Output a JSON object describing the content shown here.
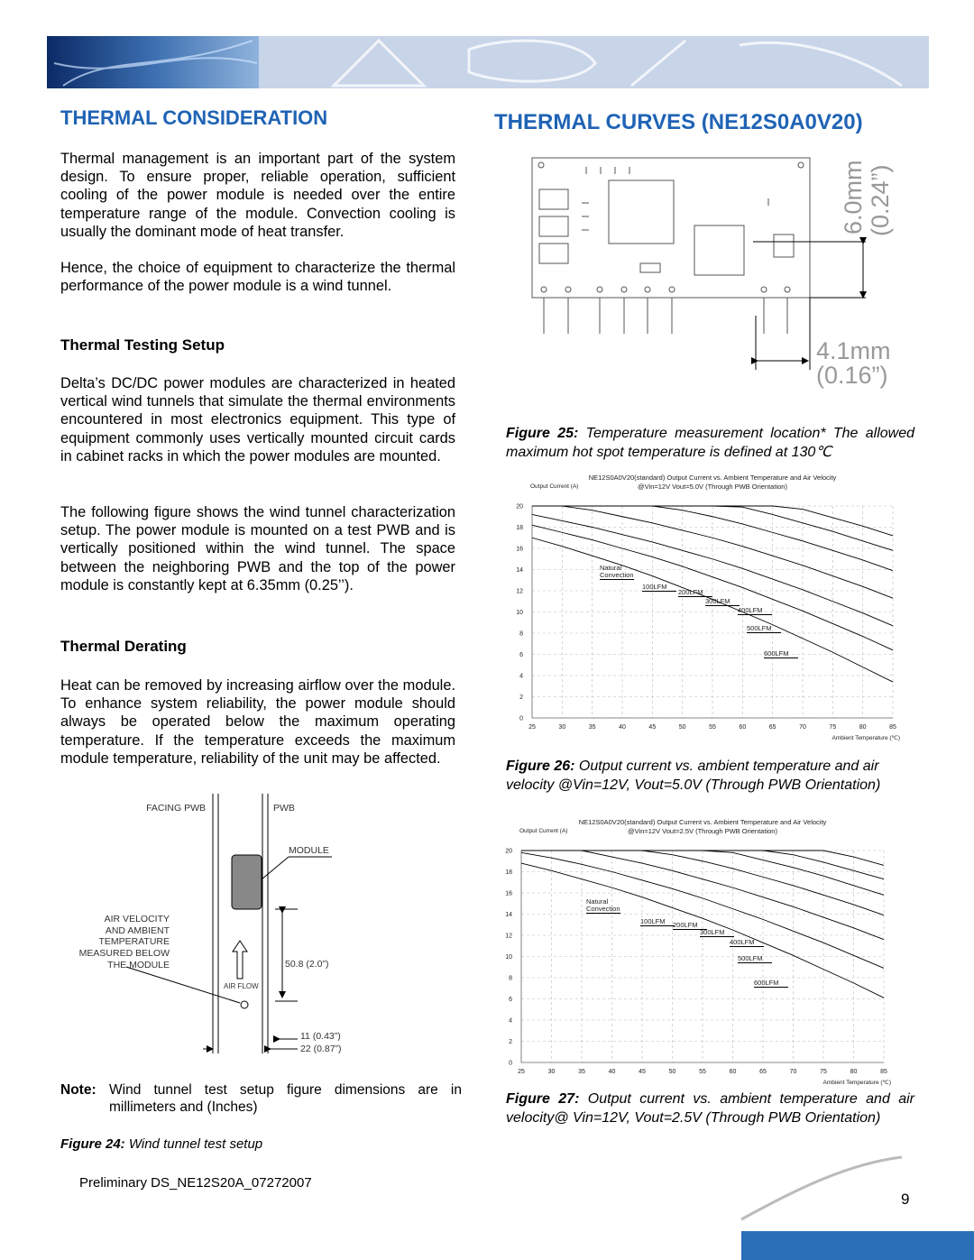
{
  "left": {
    "title": "THERMAL CONSIDERATION",
    "paragraphs": [
      "Thermal management is an important part of the system design. To ensure proper, reliable operation, sufficient cooling of the power module is needed over the entire temperature range of the module. Convection cooling is usually the dominant mode of heat transfer.",
      "Hence, the choice of equipment to characterize the thermal performance of the power module is a wind tunnel."
    ],
    "testing": {
      "heading": "Thermal Testing Setup",
      "paragraphs": [
        "Delta’s DC/DC power modules are characterized in heated vertical wind tunnels that simulate the thermal environments encountered in most electronics equipment. This type of equipment commonly uses vertically mounted circuit cards in cabinet racks in which the power modules are mounted.",
        "The following figure shows the wind tunnel characterization setup. The power module is mounted on a test PWB and is vertically positioned within the wind tunnel. The space between the neighboring PWB and the top of the power module is constantly kept at 6.35mm (0.25’’)."
      ]
    },
    "derating": {
      "heading": "Thermal Derating",
      "paragraphs": [
        "Heat can be removed by increasing airflow over the module. To enhance system reliability, the power module should always be operated below the maximum operating temperature. If the temperature exceeds the maximum module temperature, reliability of the unit may be affected."
      ]
    },
    "figure24": {
      "labels": {
        "facing_pwb": "FACING PWB",
        "pwb": "PWB",
        "module": "MODULE",
        "measured": [
          "AIR VELOCITY",
          "AND AMBIENT",
          "TEMPERATURE",
          "MEASURED BELOW",
          "THE MODULE"
        ],
        "height": "50.8 (2.0”)",
        "airflow": "AIR FLOW",
        "gap": "11 (0.43”)",
        "spacing": "22 (0.87”)"
      },
      "caption": {
        "label": "Figure 24:",
        "text": "Wind tunnel test setup"
      }
    },
    "note": {
      "label": "Note:",
      "text": "Wind tunnel test setup figure dimensions are in millimeters and (Inches)"
    }
  },
  "right": {
    "title": "THERMAL CURVES (NE12S0A0V20)",
    "figure25": {
      "dims": [
        "6.0mm",
        "(0.24”)",
        "4.1mm",
        "(0.16”)"
      ],
      "caption": {
        "label": "Figure 25:",
        "text": "Temperature measurement location* The allowed maximum hot spot temperature is defined at 130℃"
      }
    },
    "figure26_caption": {
      "label": "Figure 26:",
      "text": "Output current vs. ambient temperature and air velocity @Vin=12V, Vout=5.0V (Through PWB Orientation)"
    },
    "figure27_caption": {
      "label": "Figure 27:",
      "text": "Output current vs. ambient temperature and air velocity@ Vin=12V, Vout=2.5V (Through PWB Orientation)"
    }
  },
  "footer": {
    "doc_id": "Preliminary DS_NE12S20A_07272007",
    "page": "9"
  },
  "chart_data": [
    {
      "type": "line",
      "title": "NE12S0A0V20(standard) Output Current vs. Ambient Temperature and Air Velocity",
      "subtitle": "@Vin=12V Vout=5.0V (Through PWB Orientation)",
      "y_label": "Output Current (A)",
      "x_label": "Ambient Temperature (℃)",
      "x": [
        25,
        30,
        35,
        40,
        45,
        50,
        55,
        60,
        65,
        70,
        75,
        80,
        85
      ],
      "xlim": [
        25,
        85
      ],
      "xticks": [
        25,
        30,
        35,
        40,
        45,
        50,
        55,
        60,
        65,
        70,
        75,
        80,
        85
      ],
      "ylim": [
        0,
        20
      ],
      "yticks": [
        0,
        2,
        4,
        6,
        8,
        10,
        12,
        14,
        16,
        18,
        20
      ],
      "grid": true,
      "series": [
        {
          "name": "Natural Convection",
          "color": "#000000",
          "values": [
            17.0,
            16.2,
            15.3,
            14.4,
            13.4,
            12.3,
            11.2,
            10.0,
            8.8,
            7.5,
            6.2,
            4.8,
            3.4
          ]
        },
        {
          "name": "100LFM",
          "color": "#000000",
          "values": [
            18.2,
            17.5,
            16.8,
            16.0,
            15.2,
            14.3,
            13.3,
            12.3,
            11.2,
            10.1,
            8.9,
            7.7,
            6.4
          ]
        },
        {
          "name": "200LFM",
          "color": "#000000",
          "values": [
            19.2,
            18.6,
            18.0,
            17.3,
            16.6,
            15.8,
            15.0,
            14.1,
            13.1,
            12.1,
            11.0,
            9.9,
            8.7
          ]
        },
        {
          "name": "300LFM",
          "color": "#000000",
          "values": [
            20,
            20,
            19.6,
            19.0,
            18.4,
            17.7,
            17.0,
            16.2,
            15.3,
            14.4,
            13.4,
            12.4,
            11.3
          ]
        },
        {
          "name": "400LFM",
          "color": "#000000",
          "values": [
            20,
            20,
            20,
            20,
            20,
            19.6,
            19.0,
            18.3,
            17.5,
            16.7,
            15.8,
            14.9,
            13.9
          ]
        },
        {
          "name": "500LFM",
          "color": "#000000",
          "values": [
            20,
            20,
            20,
            20,
            20,
            20,
            20,
            19.9,
            19.2,
            18.4,
            17.6,
            16.7,
            15.8
          ]
        },
        {
          "name": "600LFM",
          "color": "#000000",
          "values": [
            20,
            20,
            20,
            20,
            20,
            20,
            20,
            20,
            20,
            19.7,
            18.9,
            18.1,
            17.2
          ]
        }
      ]
    },
    {
      "type": "line",
      "title": "NE12S0A0V20(standard) Output Current vs. Ambient Temperature and Air Velocity",
      "subtitle": "@Vin=12V Vout=2.5V (Through PWB Orientation)",
      "y_label": "Output Current (A)",
      "x_label": "Ambient Temperature (℃)",
      "x": [
        25,
        30,
        35,
        40,
        45,
        50,
        55,
        60,
        65,
        70,
        75,
        80,
        85
      ],
      "xlim": [
        25,
        85
      ],
      "xticks": [
        25,
        30,
        35,
        40,
        45,
        50,
        55,
        60,
        65,
        70,
        75,
        80,
        85
      ],
      "ylim": [
        0,
        20
      ],
      "yticks": [
        0,
        2,
        4,
        6,
        8,
        10,
        12,
        14,
        16,
        18,
        20
      ],
      "grid": true,
      "series": [
        {
          "name": "Natural Convection",
          "color": "#000000",
          "values": [
            18.8,
            18.1,
            17.3,
            16.5,
            15.6,
            14.6,
            13.6,
            12.5,
            11.3,
            10.1,
            8.8,
            7.5,
            6.1
          ]
        },
        {
          "name": "100LFM",
          "color": "#000000",
          "values": [
            19.8,
            19.3,
            18.7,
            18.0,
            17.2,
            16.4,
            15.5,
            14.5,
            13.5,
            12.4,
            11.3,
            10.1,
            8.9
          ]
        },
        {
          "name": "200LFM",
          "color": "#000000",
          "values": [
            20,
            20,
            20,
            19.4,
            18.8,
            18.1,
            17.3,
            16.5,
            15.6,
            14.7,
            13.7,
            12.7,
            11.6
          ]
        },
        {
          "name": "300LFM",
          "color": "#000000",
          "values": [
            20,
            20,
            20,
            20,
            20,
            19.6,
            19.0,
            18.3,
            17.5,
            16.7,
            15.8,
            14.9,
            13.9
          ]
        },
        {
          "name": "400LFM",
          "color": "#000000",
          "values": [
            20,
            20,
            20,
            20,
            20,
            20,
            20,
            19.8,
            19.1,
            18.4,
            17.6,
            16.7,
            15.8
          ]
        },
        {
          "name": "500LFM",
          "color": "#000000",
          "values": [
            20,
            20,
            20,
            20,
            20,
            20,
            20,
            20,
            20,
            19.6,
            18.9,
            18.1,
            17.3
          ]
        },
        {
          "name": "600LFM",
          "color": "#000000",
          "values": [
            20,
            20,
            20,
            20,
            20,
            20,
            20,
            20,
            20,
            20,
            20,
            19.4,
            18.6
          ]
        }
      ]
    }
  ]
}
